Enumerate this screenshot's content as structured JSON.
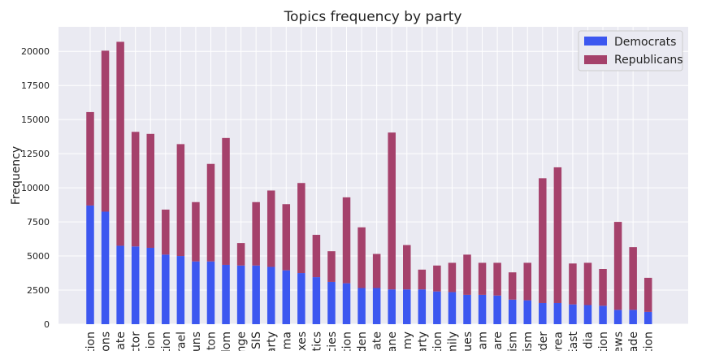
{
  "chart_data": {
    "type": "bar",
    "stacked": true,
    "title": "Topics frequency by party",
    "xlabel": "",
    "ylabel": "Frequency",
    "ylim": [
      0,
      21800
    ],
    "yticks": [
      0,
      2500,
      5000,
      7500,
      10000,
      12500,
      15000,
      17500,
      20000
    ],
    "grid": true,
    "legend_position": "top-right",
    "categories": [
      "tion",
      "ons",
      "ate",
      "ector",
      "ion",
      "tion",
      "rael",
      "uns",
      "aton",
      "dom",
      "nge",
      "SIS",
      "arty",
      "ma",
      "xes",
      "tics",
      "cies",
      "tion",
      "den",
      "iate",
      "ane",
      "my",
      "arty",
      "tion",
      "mily",
      "ues",
      "am",
      "are",
      "ism",
      "ism",
      "rder",
      "orea",
      "East",
      "dia",
      "tion",
      "ews",
      "ade",
      "tion"
    ],
    "series": [
      {
        "name": "Democrats",
        "color": "#3c57f0",
        "values": [
          8700,
          8250,
          5750,
          5700,
          5600,
          5100,
          5000,
          4600,
          4600,
          4350,
          4300,
          4300,
          4200,
          3950,
          3750,
          3450,
          3100,
          3000,
          2650,
          2650,
          2550,
          2550,
          2550,
          2400,
          2350,
          2150,
          2150,
          2100,
          1800,
          1750,
          1550,
          1550,
          1450,
          1400,
          1350,
          1050,
          1050,
          900
        ]
      },
      {
        "name": "Republicans",
        "color": "#a5416b",
        "values": [
          6850,
          11800,
          14950,
          8400,
          8350,
          3300,
          8200,
          4350,
          7150,
          9300,
          1650,
          4650,
          5600,
          4850,
          6600,
          3100,
          2250,
          6300,
          4450,
          2500,
          11500,
          3250,
          1450,
          1900,
          2150,
          2950,
          2350,
          2400,
          2000,
          2750,
          9150,
          9950,
          3000,
          3100,
          2700,
          6450,
          4600,
          2500
        ]
      }
    ]
  }
}
